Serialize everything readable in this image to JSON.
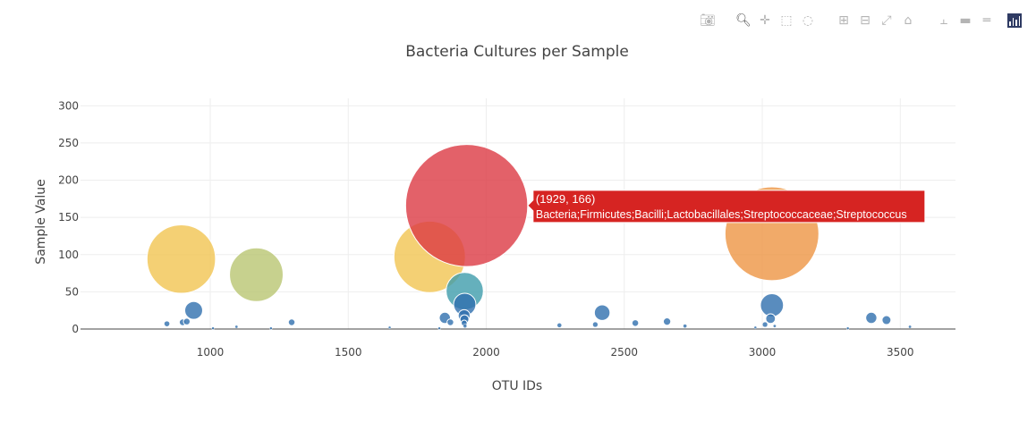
{
  "chart_data": {
    "type": "scatter",
    "title": "Bacteria Cultures per Sample",
    "xlabel": "OTU IDs",
    "ylabel": "Sample Value",
    "xlim": [
      530,
      3700
    ],
    "ylim": [
      0,
      310
    ],
    "xticks": [
      1000,
      1500,
      2000,
      2500,
      3000,
      3500
    ],
    "yticks": [
      0,
      50,
      100,
      150,
      200,
      250,
      300
    ],
    "grid": true,
    "colors": {
      "red": "#dc3a44",
      "orange": "#ee9544",
      "yellow": "#f1c451",
      "olive": "#b9c672",
      "teal": "#3f9cab",
      "blue": "#2f6fae",
      "navy": "#1f4e8f"
    },
    "points": [
      {
        "x": 843,
        "y": 7,
        "size": 8,
        "color": "blue"
      },
      {
        "x": 895,
        "y": 94,
        "size": 92,
        "color": "yellow"
      },
      {
        "x": 900,
        "y": 9,
        "size": 9,
        "color": "blue"
      },
      {
        "x": 915,
        "y": 10,
        "size": 9,
        "color": "blue"
      },
      {
        "x": 940,
        "y": 25,
        "size": 24,
        "color": "blue"
      },
      {
        "x": 1010,
        "y": 1,
        "size": 3,
        "color": "blue"
      },
      {
        "x": 1095,
        "y": 3,
        "size": 4,
        "color": "blue"
      },
      {
        "x": 1167,
        "y": 73,
        "size": 72,
        "color": "olive"
      },
      {
        "x": 1220,
        "y": 1,
        "size": 3,
        "color": "blue"
      },
      {
        "x": 1295,
        "y": 9,
        "size": 9,
        "color": "blue"
      },
      {
        "x": 1650,
        "y": 2,
        "size": 3,
        "color": "blue"
      },
      {
        "x": 1795,
        "y": 97,
        "size": 96,
        "color": "yellow"
      },
      {
        "x": 1830,
        "y": 1,
        "size": 3,
        "color": "blue"
      },
      {
        "x": 1850,
        "y": 15,
        "size": 15,
        "color": "blue"
      },
      {
        "x": 1870,
        "y": 9,
        "size": 9,
        "color": "blue"
      },
      {
        "x": 1929,
        "y": 166,
        "size": 164,
        "color": "red",
        "label": "Bacteria;Firmicutes;Bacilli;Lactobacillales;Streptococcaceae;Streptococcus"
      },
      {
        "x": 1922,
        "y": 51,
        "size": 50,
        "color": "teal"
      },
      {
        "x": 1922,
        "y": 33,
        "size": 30,
        "color": "blue"
      },
      {
        "x": 1920,
        "y": 18,
        "size": 16,
        "color": "blue"
      },
      {
        "x": 1921,
        "y": 13,
        "size": 12,
        "color": "blue"
      },
      {
        "x": 1920,
        "y": 8,
        "size": 8,
        "color": "blue"
      },
      {
        "x": 1923,
        "y": 4,
        "size": 5,
        "color": "blue"
      },
      {
        "x": 2265,
        "y": 5,
        "size": 6,
        "color": "blue"
      },
      {
        "x": 2395,
        "y": 6,
        "size": 7,
        "color": "blue"
      },
      {
        "x": 2420,
        "y": 22,
        "size": 21,
        "color": "blue"
      },
      {
        "x": 2540,
        "y": 8,
        "size": 9,
        "color": "blue"
      },
      {
        "x": 2655,
        "y": 10,
        "size": 10,
        "color": "blue"
      },
      {
        "x": 2720,
        "y": 4,
        "size": 5,
        "color": "blue"
      },
      {
        "x": 2975,
        "y": 2,
        "size": 3,
        "color": "blue"
      },
      {
        "x": 3010,
        "y": 6,
        "size": 7,
        "color": "blue"
      },
      {
        "x": 3035,
        "y": 128,
        "size": 126,
        "color": "orange"
      },
      {
        "x": 3035,
        "y": 32,
        "size": 31,
        "color": "blue"
      },
      {
        "x": 3030,
        "y": 14,
        "size": 13,
        "color": "blue"
      },
      {
        "x": 3045,
        "y": 4,
        "size": 4,
        "color": "blue"
      },
      {
        "x": 3310,
        "y": 1,
        "size": 3,
        "color": "blue"
      },
      {
        "x": 3395,
        "y": 15,
        "size": 15,
        "color": "blue"
      },
      {
        "x": 3450,
        "y": 12,
        "size": 12,
        "color": "blue"
      },
      {
        "x": 3535,
        "y": 3,
        "size": 4,
        "color": "blue"
      }
    ],
    "tooltip": {
      "point_index": 15,
      "line1": "(1929, 166)",
      "line2": "Bacteria;Firmicutes;Bacilli;Lactobacillales;Streptococcaceae;Streptococcus",
      "color": "#d62422"
    }
  },
  "modebar": {
    "icons": [
      "camera-icon",
      "zoom-icon",
      "pan-icon",
      "box-select-icon",
      "lasso-icon",
      "zoom-in-icon",
      "zoom-out-icon",
      "autoscale-icon",
      "reset-axes-icon",
      "spike-lines-icon",
      "hover-closest-icon",
      "hover-compare-icon",
      "plotly-logo-icon"
    ]
  }
}
